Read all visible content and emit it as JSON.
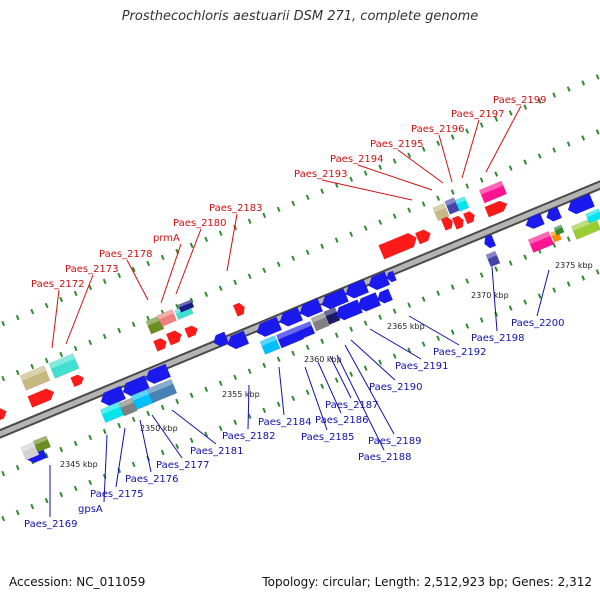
{
  "title": "Prosthecochloris aestuarii DSM 271, complete genome",
  "footer": {
    "accession": "Accession: NC_011059",
    "summary": "Topology: circular; Length: 2,512,923 bp; Genes: 2,312"
  },
  "colors": {
    "forward_label": "#cc1111",
    "reverse_label": "#1111aa",
    "backbone": "#a9a9a9",
    "dots": "#2e8b2e"
  },
  "ticks": [
    "2345 kbp",
    "2350 kbp",
    "2355 kbp",
    "2360 kbp",
    "2365 kbp",
    "2370 kbp",
    "2375 kbp"
  ],
  "labels_top": [
    "Paes_2172",
    "Paes_2173",
    "Paes_2178",
    "prmA",
    "Paes_2180",
    "Paes_2183",
    "Paes_2193",
    "Paes_2194",
    "Paes_2195",
    "Paes_2196",
    "Paes_2197",
    "Paes_2199"
  ],
  "labels_bottom": [
    "Paes_2169",
    "gpsA",
    "Paes_2175",
    "Paes_2176",
    "Paes_2177",
    "Paes_2181",
    "Paes_2182",
    "Paes_2184",
    "Paes_2185",
    "Paes_2186",
    "Paes_2187",
    "Paes_2188",
    "Paes_2189",
    "Paes_2190",
    "Paes_2191",
    "Paes_2192",
    "Paes_2198",
    "Paes_2200"
  ]
}
